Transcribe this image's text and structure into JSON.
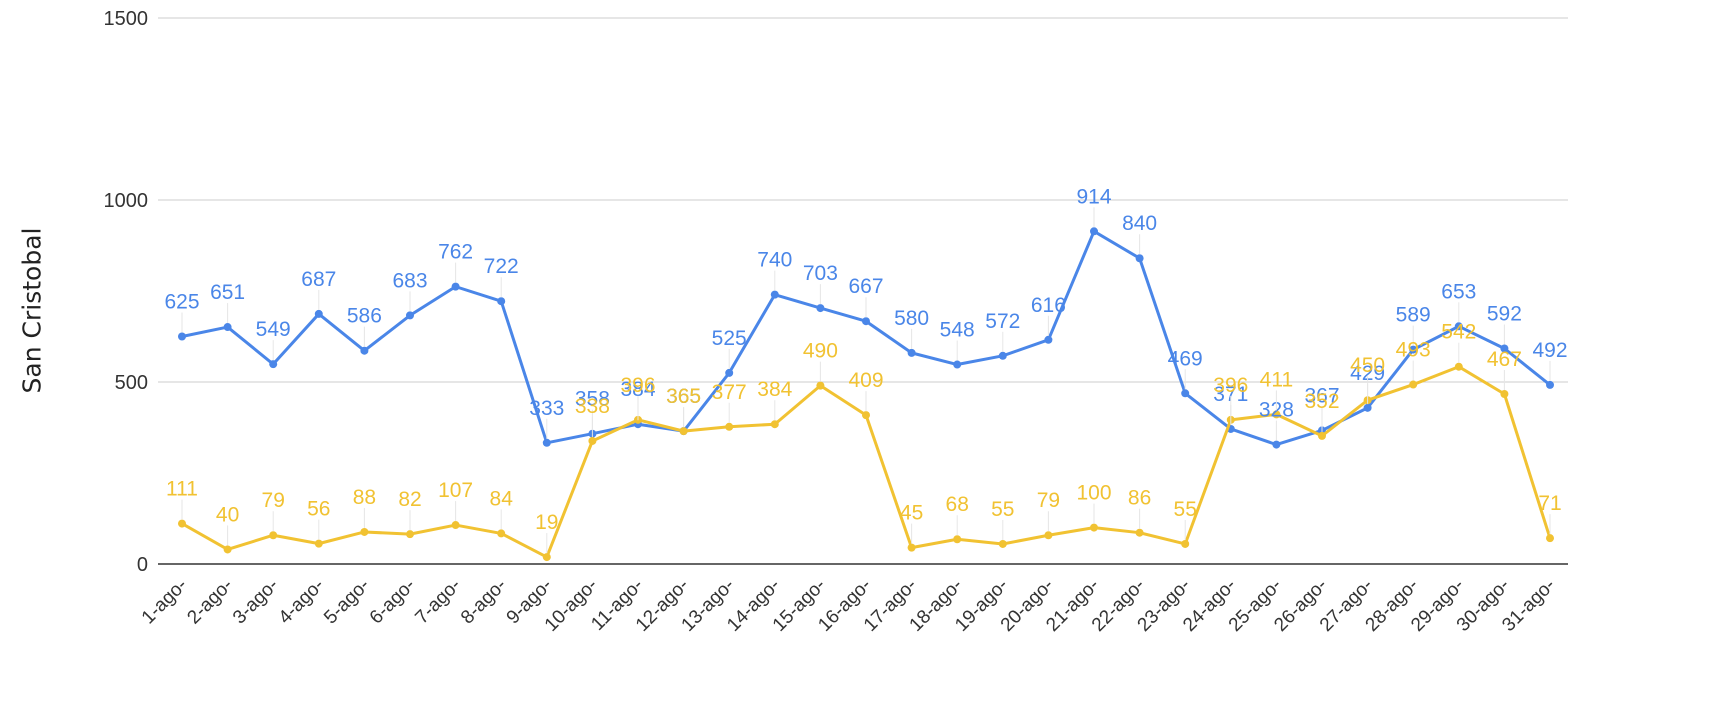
{
  "chart_data": {
    "type": "line",
    "ylabel": "San Cristobal",
    "ylim": [
      0,
      1500
    ],
    "yticks": [
      "0",
      "500",
      "1000",
      "1500"
    ],
    "grid": true,
    "legend": "none",
    "categories": [
      "1-ago-",
      "2-ago-",
      "3-ago-",
      "4-ago-",
      "5-ago-",
      "6-ago-",
      "7-ago-",
      "8-ago-",
      "9-ago-",
      "10-ago-",
      "11-ago-",
      "12-ago-",
      "13-ago-",
      "14-ago-",
      "15-ago-",
      "16-ago-",
      "17-ago-",
      "18-ago-",
      "19-ago-",
      "20-ago-",
      "21-ago-",
      "22-ago-",
      "23-ago-",
      "24-ago-",
      "25-ago-",
      "26-ago-",
      "27-ago-",
      "28-ago-",
      "29-ago-",
      "30-ago-",
      "31-ago-"
    ],
    "series": [
      {
        "color": "#4a86e8",
        "values": [
          625,
          651,
          549,
          687,
          586,
          683,
          762,
          722,
          333,
          358,
          384,
          365,
          525,
          740,
          703,
          667,
          580,
          548,
          572,
          616,
          914,
          840,
          469,
          371,
          328,
          367,
          429,
          589,
          653,
          592,
          492
        ]
      },
      {
        "color": "#f1c232",
        "values": [
          111,
          40,
          79,
          56,
          88,
          82,
          107,
          84,
          19,
          338,
          396,
          365,
          377,
          384,
          490,
          409,
          45,
          68,
          55,
          79,
          100,
          86,
          55,
          396,
          411,
          352,
          450,
          493,
          542,
          467,
          71
        ]
      }
    ]
  }
}
